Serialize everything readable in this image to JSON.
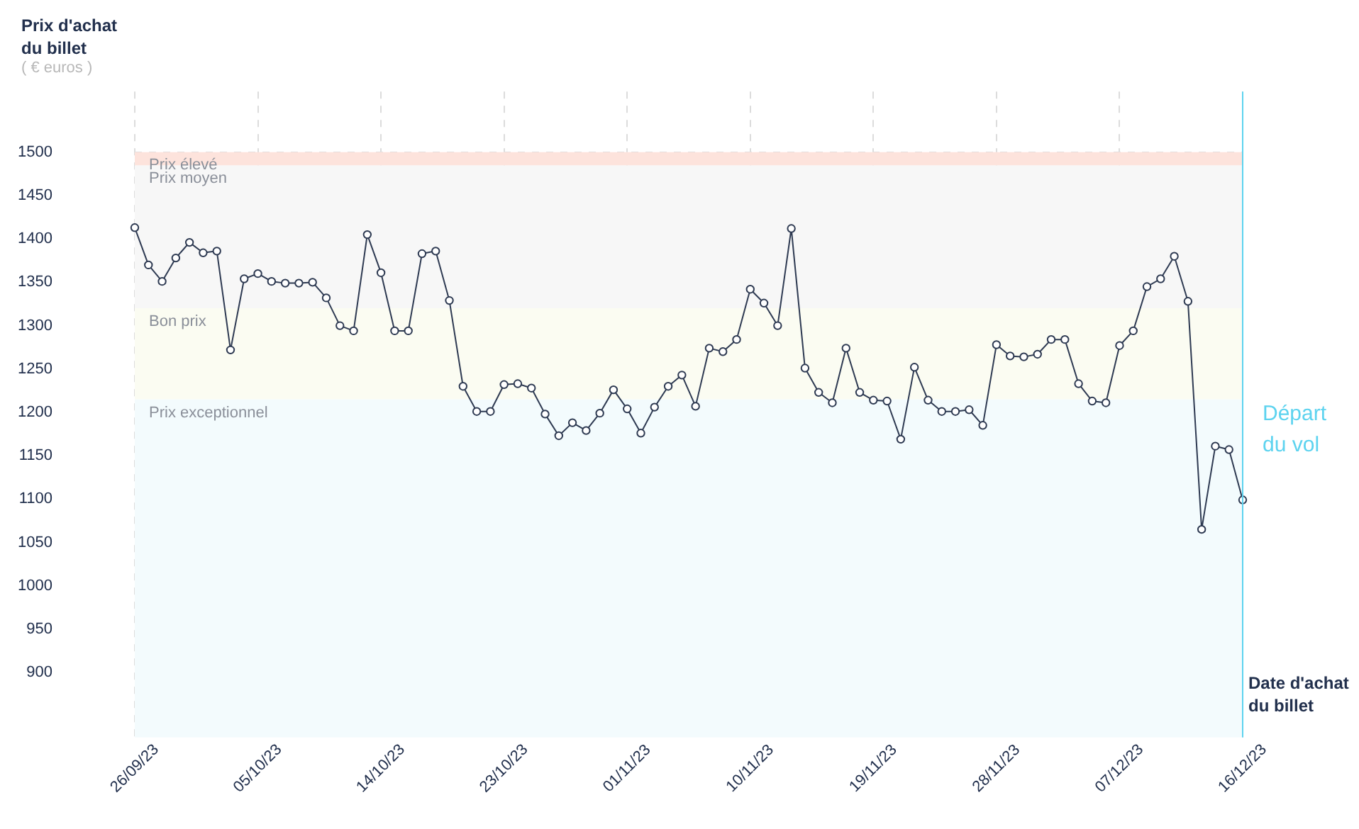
{
  "chart_data": {
    "type": "line",
    "ylabel": "Prix d'achat du billet",
    "xlabel": "Date d'achat du billet",
    "annotations": [
      "( € euros )"
    ],
    "categories": [
      "26/09/23",
      null,
      null,
      null,
      null,
      null,
      null,
      null,
      null,
      "05/10/23",
      null,
      null,
      null,
      null,
      null,
      null,
      null,
      null,
      "14/10/23",
      null,
      null,
      null,
      null,
      null,
      null,
      null,
      null,
      "23/10/23",
      null,
      null,
      null,
      null,
      null,
      null,
      null,
      null,
      "01/11/23",
      null,
      null,
      null,
      null,
      null,
      null,
      null,
      null,
      "10/11/23",
      null,
      null,
      null,
      null,
      null,
      null,
      null,
      null,
      "19/11/23",
      null,
      null,
      null,
      null,
      null,
      null,
      null,
      null,
      "28/11/23",
      null,
      null,
      null,
      null,
      null,
      null,
      null,
      null,
      "07/12/23",
      null,
      null,
      null,
      null,
      null,
      null,
      null,
      null,
      "16/12/23"
    ],
    "series": [
      {
        "color": "#2e3a52",
        "values": [
          1413,
          1370,
          1351,
          1378,
          1396,
          1384,
          1386,
          1272,
          1354,
          1360,
          1351,
          1349,
          1349,
          1350,
          1332,
          1300,
          1294,
          1405,
          1361,
          1294,
          1294,
          1383,
          1386,
          1329,
          1230,
          1201,
          1201,
          1232,
          1233,
          1228,
          1198,
          1173,
          1188,
          1179,
          1199,
          1226,
          1204,
          1176,
          1206,
          1230,
          1243,
          1207,
          1274,
          1270,
          1284,
          1342,
          1326,
          1300,
          1412,
          1251,
          1223,
          1211,
          1274,
          1223,
          1214,
          1213,
          1169,
          1252,
          1214,
          1201,
          1201,
          1203,
          1185,
          1278,
          1265,
          1264,
          1267,
          1284,
          1284,
          1233,
          1213,
          1211,
          1277,
          1294,
          1345,
          1354,
          1380,
          1328,
          1065,
          1161,
          1157,
          1099
        ]
      }
    ],
    "ylim": [
      825,
      1570
    ],
    "yticks": [
      900,
      950,
      1000,
      1050,
      1100,
      1150,
      1200,
      1250,
      1300,
      1350,
      1400,
      1450,
      1500
    ],
    "grid": true,
    "legend": false,
    "marker": "circle",
    "line_style": "solid",
    "bands": [
      {
        "axis": "y",
        "from": 825,
        "to": 1215,
        "label": "Prix exceptionnel",
        "color": "#f3fbfd"
      },
      {
        "axis": "y",
        "from": 1215,
        "to": 1320,
        "label": "Bon prix",
        "color": "#fbfcf2"
      },
      {
        "axis": "y",
        "from": 1320,
        "to": 1485,
        "label": "Prix moyen",
        "color": "#f7f7f7"
      },
      {
        "axis": "y",
        "from": 1485,
        "to": 1500,
        "label": "Prix élevé",
        "color": "#fde3dc"
      }
    ],
    "ref_lines": [
      {
        "axis": "x",
        "value": "16/12/23",
        "label": "Départ du vol",
        "color": "#5dd3ef"
      }
    ]
  }
}
